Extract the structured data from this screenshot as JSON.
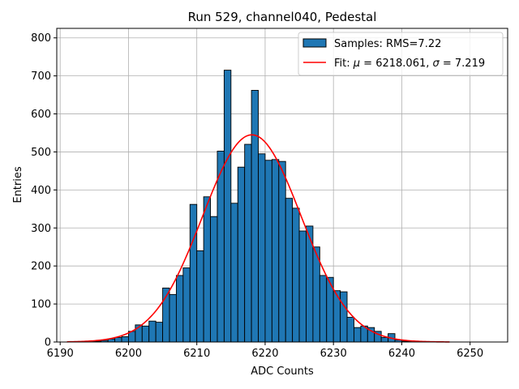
{
  "chart_data": {
    "type": "bar",
    "title": "Run 529, channel040, Pedestal",
    "xlabel": "ADC Counts",
    "ylabel": "Entries",
    "xlim": [
      6189.5,
      6255.5
    ],
    "ylim": [
      0,
      825
    ],
    "xticks": [
      6190,
      6200,
      6210,
      6220,
      6230,
      6240,
      6250
    ],
    "yticks": [
      0,
      100,
      200,
      300,
      400,
      500,
      600,
      700,
      800
    ],
    "grid": true,
    "legend_position": "top-right",
    "histogram": {
      "name": "Samples: RMS=7.22",
      "bin_width": 1,
      "bin_left_edges": [
        6193,
        6194,
        6195,
        6196,
        6197,
        6198,
        6199,
        6200,
        6201,
        6202,
        6203,
        6204,
        6205,
        6206,
        6207,
        6208,
        6209,
        6210,
        6211,
        6212,
        6213,
        6214,
        6215,
        6216,
        6217,
        6218,
        6219,
        6220,
        6221,
        6222,
        6223,
        6224,
        6225,
        6226,
        6227,
        6228,
        6229,
        6230,
        6231,
        6232,
        6233,
        6234,
        6235,
        6236,
        6237,
        6238,
        6239,
        6240,
        6241
      ],
      "counts": [
        1,
        2,
        2,
        4,
        8,
        12,
        14,
        28,
        45,
        42,
        55,
        52,
        142,
        125,
        175,
        195,
        362,
        240,
        382,
        330,
        502,
        715,
        365,
        460,
        520,
        662,
        495,
        478,
        480,
        475,
        378,
        352,
        292,
        305,
        250,
        175,
        170,
        135,
        132,
        65,
        38,
        42,
        38,
        28,
        12,
        22,
        5,
        2,
        1
      ],
      "color": "#1f77b4",
      "edge_color": "#000000"
    },
    "fit": {
      "name": "Fit: μ = 6218.061, σ = 7.219",
      "name_prefix": "Fit: ",
      "mu_symbol": "μ",
      "mu_text": " = 6218.061, ",
      "sigma_symbol": "σ",
      "sigma_text": " = 7.219",
      "mu": 6218.061,
      "sigma": 7.219,
      "peak": 545,
      "x_range": [
        6191,
        6247
      ],
      "color": "#ff0000"
    }
  }
}
